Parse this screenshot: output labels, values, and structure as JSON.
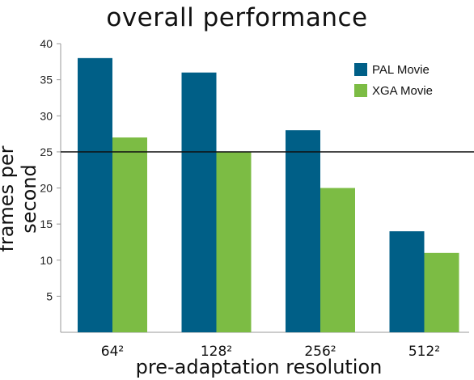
{
  "chart_data": {
    "type": "bar",
    "title": "overall performance",
    "xlabel": "pre-adaptation resolution",
    "ylabel": "frames per second",
    "categories": [
      "64²",
      "128²",
      "256²",
      "512²"
    ],
    "series": [
      {
        "name": "PAL Movie",
        "color": "#005f87",
        "values": [
          38,
          36,
          28,
          14
        ]
      },
      {
        "name": "XGA Movie",
        "color": "#7cbc44",
        "values": [
          27,
          25,
          20,
          11
        ]
      }
    ],
    "ylim": [
      0,
      40
    ],
    "yticks": [
      "5",
      "10",
      "15",
      "20",
      "25",
      "30",
      "35",
      "40"
    ],
    "reference_line": 25,
    "grid": false,
    "legend": "top-right"
  }
}
